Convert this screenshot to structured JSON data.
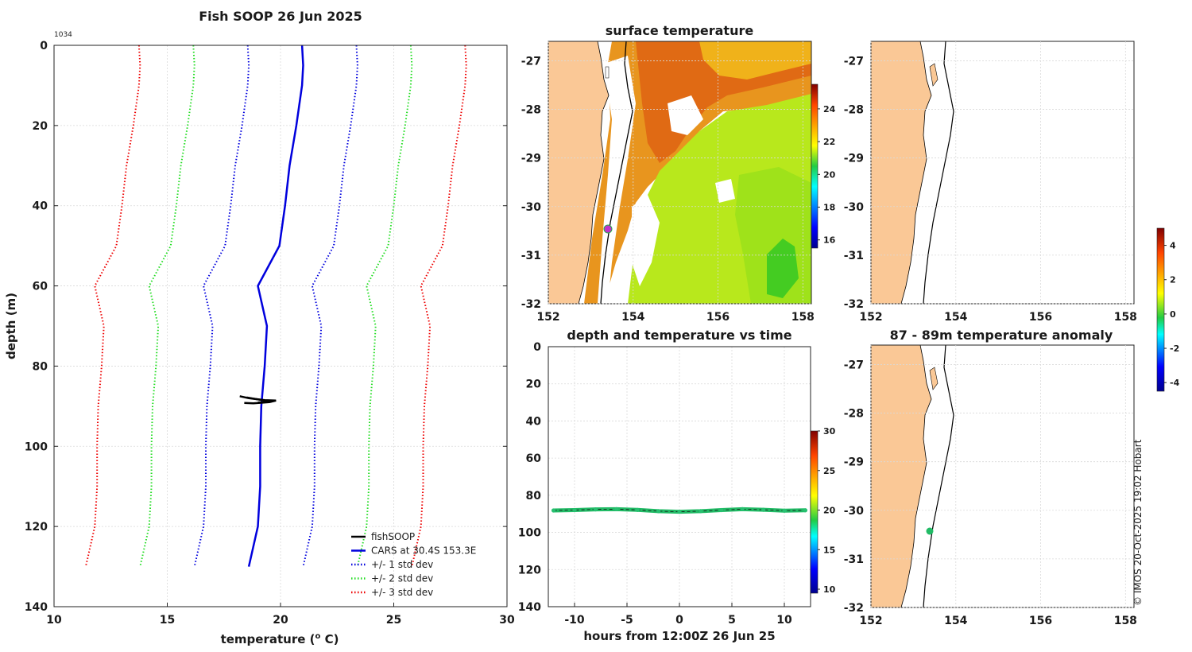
{
  "page_title": "Fish SOOP 26 Jun 2025",
  "profile_id": "1034",
  "copyright": "© IMOS 20-Oct-2025 19:02 Hobart",
  "colors": {
    "fish": "#000000",
    "cars": "#0000dd",
    "sd1": "#0000dd",
    "sd2": "#22dd22",
    "sd3": "#ee0000",
    "land": "#fac896",
    "marker_surface": "#c033cc",
    "marker_anomaly": "#22bb66"
  },
  "chart_data": [
    {
      "id": "profile",
      "type": "line",
      "title": "Fish SOOP 26 Jun 2025",
      "xlabel": "temperature (°C)",
      "ylabel": "depth (m)",
      "xlim": [
        10,
        30
      ],
      "ylim": [
        0,
        140
      ],
      "xticks": [
        "10",
        "15",
        "20",
        "25",
        "30"
      ],
      "yticks": [
        "0",
        "20",
        "40",
        "60",
        "80",
        "100",
        "120",
        "140"
      ],
      "depth": [
        0,
        5,
        10,
        20,
        30,
        40,
        50,
        60,
        70,
        80,
        90,
        100,
        110,
        120,
        125,
        130
      ],
      "cars_mean": [
        20.95,
        21.0,
        20.95,
        20.7,
        20.4,
        20.2,
        19.95,
        19.0,
        19.4,
        19.3,
        19.15,
        19.1,
        19.1,
        19.0,
        18.8,
        18.6
      ],
      "sd_offsets": [
        2.4,
        4.8,
        7.2
      ],
      "fish_segments": [
        [
          [
            18.2,
            87.5
          ],
          [
            18.6,
            88.0
          ],
          [
            19.3,
            88.5
          ],
          [
            19.8,
            88.6
          ],
          [
            19.5,
            89.0
          ],
          [
            18.8,
            89.3
          ],
          [
            18.4,
            89.2
          ]
        ],
        [
          [
            18.5,
            87.8
          ],
          [
            19.0,
            88.3
          ],
          [
            19.6,
            88.9
          ],
          [
            19.0,
            89.1
          ]
        ]
      ],
      "legend": [
        {
          "label": "fishSOOP",
          "color": "#000000",
          "style": "solid"
        },
        {
          "label": "CARS at 30.4S 153.3E",
          "color": "#0000dd",
          "style": "solid"
        },
        {
          "label": "+/- 1 std dev",
          "color": "#0000dd",
          "style": "dotted"
        },
        {
          "label": "+/- 2 std dev",
          "color": "#22dd22",
          "style": "dotted"
        },
        {
          "label": "+/- 3 std dev",
          "color": "#ee0000",
          "style": "dotted"
        }
      ]
    },
    {
      "id": "sst_map",
      "type": "heatmap",
      "title": "surface temperature",
      "xlim": [
        152,
        158.2
      ],
      "ylim": [
        -32,
        -26.6
      ],
      "xticks": [
        "152",
        "154",
        "156",
        "158"
      ],
      "yticks": [
        "-27",
        "-28",
        "-29",
        "-30",
        "-31",
        "-32"
      ],
      "colorbar_ticks": [
        "24",
        "22",
        "20",
        "18",
        "16"
      ],
      "colorbar_range": [
        15.5,
        25.5
      ],
      "marker": {
        "lon": 153.3,
        "lat": -30.45
      }
    },
    {
      "id": "depth_time",
      "type": "scatter",
      "title": "depth and temperature vs time",
      "xlabel": "hours from 12:00Z 26 Jun 25",
      "xlim": [
        -12.5,
        12.5
      ],
      "ylim": [
        0,
        140
      ],
      "xticks": [
        "-10",
        "-5",
        "0",
        "5",
        "10"
      ],
      "yticks": [
        "0",
        "20",
        "40",
        "60",
        "80",
        "100",
        "120",
        "140"
      ],
      "colorbar_ticks": [
        "30",
        "25",
        "20",
        "15",
        "10"
      ],
      "colorbar_range": [
        9.5,
        30
      ],
      "hours": [
        -12,
        -10,
        -8,
        -6,
        -4,
        -2,
        0,
        2,
        4,
        6,
        8,
        10,
        12
      ],
      "depth": [
        88.2,
        88.0,
        87.6,
        87.5,
        87.9,
        88.6,
        88.9,
        88.6,
        88.0,
        87.5,
        87.8,
        88.3,
        88.1
      ],
      "temperature": [
        19.4,
        19.4,
        19.4,
        19.3,
        19.4,
        19.3,
        19.3,
        19.4,
        19.4,
        19.4,
        19.3,
        19.4,
        19.4
      ]
    },
    {
      "id": "empty_map",
      "type": "heatmap",
      "title": "",
      "xlim": [
        152,
        158.2
      ],
      "ylim": [
        -32,
        -26.6
      ],
      "xticks": [
        "152",
        "154",
        "156",
        "158"
      ],
      "yticks": [
        "-27",
        "-28",
        "-29",
        "-30",
        "-31",
        "-32"
      ],
      "colorbar_ticks": [
        "4",
        "2",
        "0",
        "-2",
        "-4"
      ],
      "colorbar_range": [
        -4.5,
        5
      ]
    },
    {
      "id": "anomaly_map",
      "type": "heatmap",
      "title": "87 - 89m temperature anomaly",
      "xlim": [
        152,
        158.2
      ],
      "ylim": [
        -32,
        -26.6
      ],
      "xticks": [
        "152",
        "154",
        "156",
        "158"
      ],
      "yticks": [
        "-27",
        "-28",
        "-29",
        "-30",
        "-31",
        "-32"
      ],
      "marker": {
        "lon": 153.3,
        "lat": -30.45
      }
    }
  ]
}
